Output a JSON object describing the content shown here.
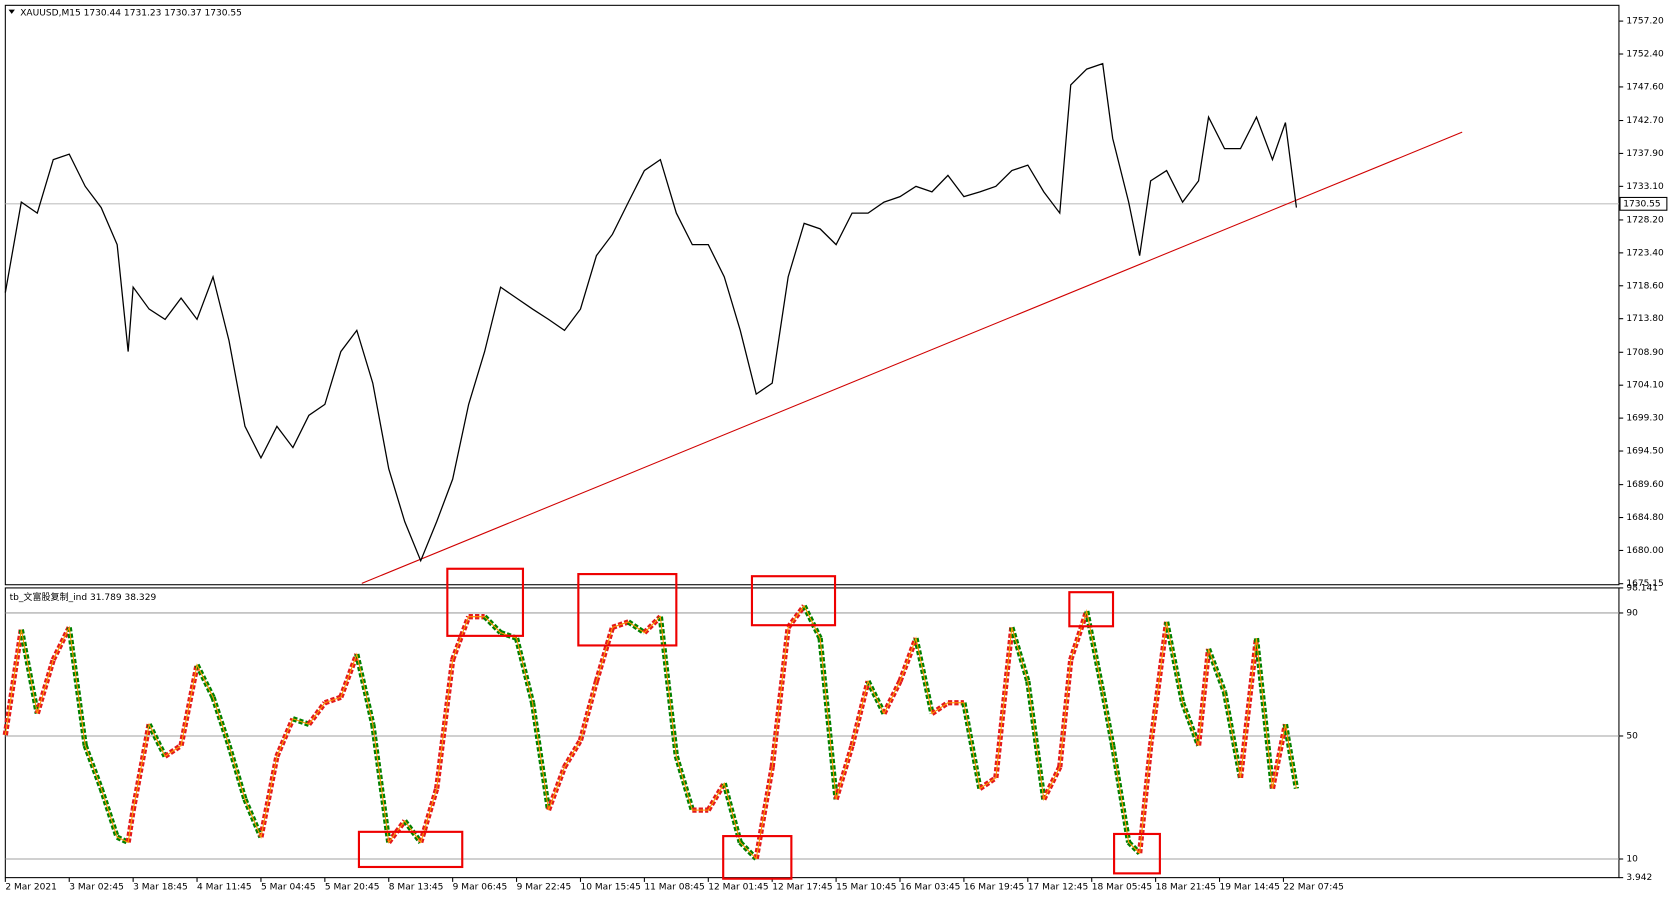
{
  "chart_data": [
    {
      "type": "line",
      "title": "XAUUSD,M15  1730.44 1731.23 1730.37 1730.55",
      "color": "#000000",
      "x": [
        0,
        16,
        32,
        48,
        64,
        80,
        96,
        112,
        123,
        128,
        144,
        160,
        176,
        192,
        208,
        224,
        240,
        256,
        272,
        288,
        304,
        320,
        336,
        352,
        368,
        384,
        400,
        416,
        432,
        448,
        464,
        480,
        496,
        512,
        528,
        544,
        560,
        576,
        592,
        608,
        624,
        640,
        656,
        672,
        688,
        704,
        720,
        736,
        752,
        768,
        784,
        800,
        816,
        832,
        848,
        864,
        880,
        896,
        912,
        928,
        944,
        960,
        976,
        992,
        1008,
        1024,
        1040,
        1056,
        1067,
        1083,
        1099,
        1109,
        1125,
        1136,
        1147,
        1163,
        1179,
        1195,
        1205,
        1221,
        1237,
        1253,
        1269,
        1282,
        1293
      ],
      "values": [
        1717.6,
        1730.8,
        1729.2,
        1737.0,
        1737.8,
        1733.1,
        1730.0,
        1724.6,
        1709.0,
        1718.4,
        1715.2,
        1713.7,
        1716.8,
        1713.7,
        1719.9,
        1710.6,
        1698.1,
        1693.5,
        1698.1,
        1695.0,
        1699.7,
        1701.3,
        1709.0,
        1712.1,
        1704.4,
        1691.9,
        1684.2,
        1678.5,
        1684.2,
        1690.4,
        1701.3,
        1709.0,
        1718.4,
        1716.8,
        1715.2,
        1713.7,
        1712.1,
        1715.2,
        1723.0,
        1726.1,
        1730.8,
        1735.4,
        1737.0,
        1729.2,
        1724.6,
        1724.6,
        1719.9,
        1712.1,
        1702.8,
        1704.4,
        1719.9,
        1727.7,
        1726.9,
        1724.6,
        1729.2,
        1729.2,
        1730.8,
        1731.6,
        1733.1,
        1732.3,
        1734.7,
        1731.6,
        1732.3,
        1733.1,
        1735.4,
        1736.2,
        1732.3,
        1729.2,
        1747.9,
        1750.2,
        1751.0,
        1740.1,
        1730.8,
        1723.0,
        1733.9,
        1735.4,
        1730.8,
        1733.9,
        1743.2,
        1738.6,
        1738.6,
        1743.2,
        1737.0,
        1742.4,
        1730.0
      ],
      "xlim": [
        0,
        1616
      ],
      "ylim": [
        1675.0,
        1759.5
      ],
      "yticks": [
        {
          "value": 1757.2,
          "label": "1757.20"
        },
        {
          "value": 1752.4,
          "label": "1752.40"
        },
        {
          "value": 1747.6,
          "label": "1747.60"
        },
        {
          "value": 1742.7,
          "label": "1742.70"
        },
        {
          "value": 1737.9,
          "label": "1737.90"
        },
        {
          "value": 1733.1,
          "label": "1733.10"
        },
        {
          "value": 1728.2,
          "label": "1728.20"
        },
        {
          "value": 1723.4,
          "label": "1723.40"
        },
        {
          "value": 1718.6,
          "label": "1718.60"
        },
        {
          "value": 1713.8,
          "label": "1713.80"
        },
        {
          "value": 1708.9,
          "label": "1708.90"
        },
        {
          "value": 1704.1,
          "label": "1704.10"
        },
        {
          "value": 1699.3,
          "label": "1699.30"
        },
        {
          "value": 1694.5,
          "label": "1694.50"
        },
        {
          "value": 1689.6,
          "label": "1689.60"
        },
        {
          "value": 1684.8,
          "label": "1684.80"
        },
        {
          "value": 1680.0,
          "label": "1680.00"
        },
        {
          "value": 1675.15,
          "label": "1675.15"
        }
      ],
      "current_price": 1730.55,
      "current_price_color": "#c0c0c0",
      "trendline": {
        "color": "#d00000",
        "x": [
          357,
          1459
        ],
        "y": [
          1675.2,
          1741.0
        ]
      }
    },
    {
      "type": "line",
      "title": "tb_文富股复制_ind 31.789 38.329",
      "x": [
        0,
        16,
        32,
        48,
        64,
        80,
        96,
        112,
        123,
        128,
        144,
        160,
        176,
        192,
        208,
        224,
        240,
        256,
        272,
        288,
        304,
        320,
        336,
        352,
        368,
        384,
        400,
        416,
        432,
        448,
        464,
        480,
        496,
        512,
        528,
        544,
        560,
        576,
        592,
        608,
        624,
        640,
        656,
        672,
        688,
        704,
        720,
        736,
        752,
        768,
        784,
        800,
        816,
        832,
        848,
        864,
        880,
        896,
        912,
        928,
        944,
        960,
        976,
        992,
        1008,
        1024,
        1040,
        1056,
        1067,
        1083,
        1099,
        1109,
        1125,
        1136,
        1147,
        1163,
        1179,
        1195,
        1205,
        1221,
        1237,
        1253,
        1269,
        1282,
        1293
      ],
      "values": [
        50.3,
        84.6,
        57.3,
        74.8,
        85.3,
        46.9,
        32.9,
        17.1,
        15.4,
        25.9,
        53.8,
        43.4,
        46.9,
        73.1,
        62.6,
        46.9,
        29.4,
        17.1,
        43.4,
        55.6,
        53.8,
        60.8,
        62.6,
        76.6,
        53.8,
        15.4,
        22.4,
        15.4,
        32.9,
        74.8,
        88.8,
        88.8,
        83.6,
        81.8,
        60.8,
        25.9,
        39.9,
        48.6,
        67.8,
        85.3,
        87.1,
        83.6,
        88.8,
        43.4,
        25.9,
        25.9,
        34.6,
        15.4,
        10.1,
        39.9,
        85.3,
        92.3,
        81.8,
        29.4,
        46.9,
        67.8,
        57.3,
        67.8,
        81.8,
        57.3,
        60.8,
        60.8,
        32.9,
        36.4,
        85.3,
        67.8,
        29.4,
        39.9,
        74.8,
        90.6,
        64.3,
        46.9,
        15.4,
        11.9,
        46.9,
        87.1,
        60.8,
        46.9,
        78.3,
        64.3,
        36.4,
        81.8,
        32.9,
        53.8,
        32.9
      ],
      "rising_color": "#e31a1c",
      "falling_color": "#008000",
      "line_color": "#ff9900",
      "xlim": [
        0,
        1616
      ],
      "ylim": [
        3.942,
        98.141
      ],
      "yticks": [
        3.942,
        10,
        50,
        90,
        98.141
      ],
      "levels": [
        10,
        50,
        90
      ],
      "xticks": [
        {
          "value": 0,
          "label": "2 Mar 2021"
        },
        {
          "value": 64,
          "label": "3 Mar 02:45"
        },
        {
          "value": 128,
          "label": "3 Mar 18:45"
        },
        {
          "value": 192,
          "label": "4 Mar 11:45"
        },
        {
          "value": 256,
          "label": "5 Mar 04:45"
        },
        {
          "value": 320,
          "label": "5 Mar 20:45"
        },
        {
          "value": 384,
          "label": "8 Mar 13:45"
        },
        {
          "value": 448,
          "label": "9 Mar 06:45"
        },
        {
          "value": 512,
          "label": "9 Mar 22:45"
        },
        {
          "value": 576,
          "label": "10 Mar 15:45"
        },
        {
          "value": 640,
          "label": "11 Mar 08:45"
        },
        {
          "value": 704,
          "label": "12 Mar 01:45"
        },
        {
          "value": 768,
          "label": "12 Mar 17:45"
        },
        {
          "value": 832,
          "label": "15 Mar 10:45"
        },
        {
          "value": 896,
          "label": "16 Mar 03:45"
        },
        {
          "value": 960,
          "label": "16 Mar 19:45"
        },
        {
          "value": 1024,
          "label": "17 Mar 12:45"
        },
        {
          "value": 1088,
          "label": "18 Mar 05:45"
        },
        {
          "value": 1152,
          "label": "18 Mar 21:45"
        },
        {
          "value": 1216,
          "label": "19 Mar 14:45"
        },
        {
          "value": 1280,
          "label": "22 Mar 07:45"
        }
      ]
    }
  ]
}
